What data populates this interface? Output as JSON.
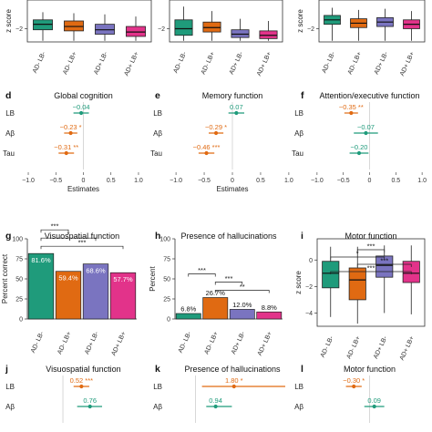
{
  "colors": {
    "AD- LB-": "#1f9b7b",
    "AD- LB+": "#e06a12",
    "AD+ LB-": "#7a74c0",
    "AD+ LB+": "#e2338a",
    "grid": "#e6e6e6",
    "axis": "#333333"
  },
  "groups": [
    "AD- LB-",
    "AD- LB+",
    "AD+ LB-",
    "AD+ LB+"
  ],
  "chart_data": [
    {
      "type": "box",
      "ylabel": "z score",
      "yticks": [
        -2
      ],
      "ylim": [
        -3.2,
        0.6
      ],
      "categories": [
        "AD- LB-",
        "AD- LB+",
        "AD+ LB-",
        "AD+ LB+"
      ],
      "boxes": [
        {
          "min": -3.1,
          "q1": -2.1,
          "median": -1.6,
          "q3": -1.2,
          "max": -0.5
        },
        {
          "min": -3.1,
          "q1": -2.2,
          "median": -1.8,
          "q3": -1.3,
          "max": -0.6
        },
        {
          "min": -3.1,
          "q1": -2.5,
          "median": -2.1,
          "q3": -1.6,
          "max": -0.7
        },
        {
          "min": -3.1,
          "q1": -2.7,
          "median": -2.3,
          "q3": -1.8,
          "max": -0.9
        }
      ]
    },
    {
      "type": "box",
      "ylabel": "",
      "yticks": [
        -2
      ],
      "ylim": [
        -3.2,
        0.6
      ],
      "categories": [
        "AD- LB-",
        "AD- LB+",
        "AD+ LB-",
        "AD+ LB+"
      ],
      "boxes": [
        {
          "min": -3.1,
          "q1": -2.6,
          "median": -2.0,
          "q3": -1.2,
          "max": 0.0
        },
        {
          "min": -3.1,
          "q1": -2.3,
          "median": -1.9,
          "q3": -1.4,
          "max": -0.4
        },
        {
          "min": -3.1,
          "q1": -2.8,
          "median": -2.5,
          "q3": -2.1,
          "max": -1.1
        },
        {
          "min": -3.1,
          "q1": -2.9,
          "median": -2.6,
          "q3": -2.2,
          "max": -1.3
        }
      ]
    },
    {
      "type": "box",
      "ylabel": "z score",
      "yticks": [
        -2
      ],
      "ylim": [
        -3.2,
        0.6
      ],
      "categories": [
        "AD- LB-",
        "AD- LB+",
        "AD+ LB-",
        "AD+ LB+"
      ],
      "boxes": [
        {
          "min": -3.1,
          "q1": -1.6,
          "median": -1.2,
          "q3": -0.8,
          "max": -0.1
        },
        {
          "min": -3.1,
          "q1": -1.9,
          "median": -1.5,
          "q3": -1.1,
          "max": -0.3
        },
        {
          "min": -3.1,
          "q1": -1.8,
          "median": -1.4,
          "q3": -1.0,
          "max": -0.2
        },
        {
          "min": -3.1,
          "q1": -2.0,
          "median": -1.6,
          "q3": -1.2,
          "max": -0.4
        }
      ]
    },
    {
      "type": "forest",
      "label": "d",
      "title": "Global cognition",
      "xlabel": "Estimates",
      "xticks": [
        -1.0,
        -0.5,
        0,
        0.5,
        1.0
      ],
      "xlim": [
        -1.05,
        1.05
      ],
      "rows": [
        {
          "name": "LB",
          "est": -0.04,
          "lo": -0.18,
          "hi": 0.1,
          "text": "−0.04",
          "color": "#1f9b7b"
        },
        {
          "name": "Aβ",
          "est": -0.23,
          "lo": -0.35,
          "hi": -0.11,
          "text": "−0.23 *",
          "color": "#e06a12"
        },
        {
          "name": "Tau",
          "est": -0.31,
          "lo": -0.45,
          "hi": -0.17,
          "text": "−0.31 **",
          "color": "#e06a12"
        }
      ]
    },
    {
      "type": "forest",
      "label": "e",
      "title": "Memory function",
      "xlabel": "Estimates",
      "xticks": [
        -1.0,
        -0.5,
        0,
        0.5,
        1.0
      ],
      "xlim": [
        -1.05,
        1.05
      ],
      "rows": [
        {
          "name": "LB",
          "est": 0.07,
          "lo": -0.07,
          "hi": 0.21,
          "text": "0.07",
          "color": "#1f9b7b"
        },
        {
          "name": "Aβ",
          "est": -0.29,
          "lo": -0.42,
          "hi": -0.16,
          "text": "−0.29 *",
          "color": "#e06a12"
        },
        {
          "name": "Tau",
          "est": -0.46,
          "lo": -0.6,
          "hi": -0.32,
          "text": "−0.46 ***",
          "color": "#e06a12"
        }
      ]
    },
    {
      "type": "forest",
      "label": "f",
      "title": "Attention/executive function",
      "xlabel": "",
      "xticks": [
        -1.0,
        -0.5,
        0,
        0.5,
        1.0
      ],
      "xlim": [
        -1.05,
        1.05
      ],
      "rows": [
        {
          "name": "LB",
          "est": -0.35,
          "lo": -0.48,
          "hi": -0.22,
          "text": "−0.35 **",
          "color": "#e06a12"
        },
        {
          "name": "Aβ",
          "est": -0.07,
          "lo": -0.3,
          "hi": 0.16,
          "text": "−0.07",
          "color": "#1f9b7b"
        },
        {
          "name": "Tau",
          "est": -0.2,
          "lo": -0.38,
          "hi": -0.02,
          "text": "−0.20",
          "color": "#1f9b7b"
        }
      ]
    },
    {
      "type": "bar",
      "label": "g",
      "title": "Visuospatial function",
      "ylabel": "Percent correct",
      "ylim": [
        0,
        100
      ],
      "yticks": [
        0,
        25,
        50,
        75,
        100
      ],
      "categories": [
        "AD- LB-",
        "AD- LB+",
        "AD+ LB-",
        "AD+ LB+"
      ],
      "values": [
        81.6,
        59.4,
        68.6,
        57.7
      ],
      "value_labels": [
        "81.6%",
        "59.4%",
        "68.6%",
        "57.7%"
      ],
      "brackets": [
        {
          "from": 0,
          "to": 3,
          "stars": "***"
        },
        {
          "from": 0,
          "to": 2,
          "stars": "*"
        },
        {
          "from": 0,
          "to": 1,
          "stars": "***"
        }
      ]
    },
    {
      "type": "bar",
      "label": "h",
      "title": "Presence of hallucinations",
      "ylabel": "Percent",
      "ylim": [
        0,
        100
      ],
      "yticks": [
        0,
        25,
        50,
        75,
        100
      ],
      "categories": [
        "AD- LB-",
        "AD- LB+",
        "AD+ LB-",
        "AD+ LB+"
      ],
      "values": [
        6.8,
        26.7,
        12.0,
        8.8
      ],
      "value_labels": [
        "6.8%",
        "26.7%",
        "12.0%",
        "8.8%"
      ],
      "brackets": [
        {
          "from": 1,
          "to": 3,
          "stars": "**"
        },
        {
          "from": 1,
          "to": 2,
          "stars": "***"
        },
        {
          "from": 0,
          "to": 1,
          "stars": "***"
        }
      ]
    },
    {
      "type": "box",
      "label": "i",
      "title": "Motor function",
      "ylabel": "z score",
      "yticks": [
        -4,
        -2,
        0
      ],
      "ylim": [
        -5.0,
        1.6
      ],
      "categories": [
        "AD- LB-",
        "AD- LB+",
        "AD+ LB-",
        "AD+ LB+"
      ],
      "boxes": [
        {
          "min": -4.3,
          "q1": -2.1,
          "median": -1.0,
          "q3": -0.1,
          "max": 1.0
        },
        {
          "min": -4.8,
          "q1": -3.0,
          "median": -1.5,
          "q3": -0.6,
          "max": 1.0
        },
        {
          "min": -4.0,
          "q1": -1.3,
          "median": -0.4,
          "q3": 0.3,
          "max": 1.1
        },
        {
          "min": -4.1,
          "q1": -1.7,
          "median": -1.0,
          "q3": -0.1,
          "max": 1.1
        }
      ],
      "brackets": [
        {
          "from": 0,
          "to": 3,
          "stars": "***"
        },
        {
          "from": 1,
          "to": 3,
          "stars": "***"
        },
        {
          "from": 0,
          "to": 2,
          "stars": "*"
        },
        {
          "from": 1,
          "to": 2,
          "stars": "***"
        }
      ]
    },
    {
      "type": "forest",
      "label": "j",
      "title": "Visuospatial function",
      "xlabel": "",
      "xticks": [],
      "xlim": [
        -1.05,
        2.2
      ],
      "rows": [
        {
          "name": "LB",
          "est": 0.52,
          "lo": 0.3,
          "hi": 0.74,
          "text": "0.52 ***",
          "color": "#e06a12"
        },
        {
          "name": "Aβ",
          "est": 0.76,
          "lo": 0.4,
          "hi": 1.1,
          "text": "0.76",
          "color": "#1f9b7b"
        }
      ]
    },
    {
      "type": "forest",
      "label": "k",
      "title": "Presence of hallucinations",
      "xlabel": "",
      "xticks": [],
      "xlim": [
        -1.05,
        4.5
      ],
      "rows": [
        {
          "name": "LB",
          "est": 1.8,
          "lo": 0.3,
          "hi": 4.2,
          "text": "1.80 *",
          "color": "#e06a12"
        },
        {
          "name": "Aβ",
          "est": 0.94,
          "lo": 0.5,
          "hi": 1.7,
          "text": "0.94",
          "color": "#1f9b7b"
        }
      ]
    },
    {
      "type": "forest",
      "label": "l",
      "title": "Motor function",
      "xlabel": "",
      "xticks": [],
      "xlim": [
        -1.05,
        1.05
      ],
      "rows": [
        {
          "name": "LB",
          "est": -0.3,
          "lo": -0.45,
          "hi": -0.15,
          "text": "−0.30 *",
          "color": "#e06a12"
        },
        {
          "name": "Aβ",
          "est": 0.09,
          "lo": -0.1,
          "hi": 0.28,
          "text": "0.09",
          "color": "#1f9b7b"
        }
      ]
    }
  ]
}
